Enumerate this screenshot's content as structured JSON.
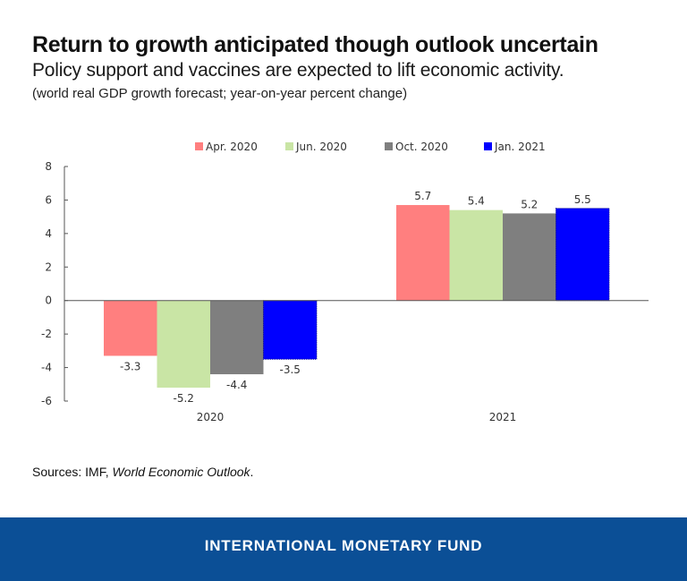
{
  "header": {
    "title": "Return to growth anticipated though outlook uncertain",
    "subtitle": "Policy support and vaccines are expected to lift economic activity.",
    "note": "(world real GDP growth forecast; year-on-year percent change)"
  },
  "sources": {
    "prefix": "Sources: IMF, ",
    "publication": "World Economic Outlook",
    "suffix": "."
  },
  "footer": {
    "org_name": "INTERNATIONAL MONETARY FUND",
    "background_color": "#0b4f96"
  },
  "chart_data": {
    "type": "bar",
    "title": "Return to growth anticipated though outlook uncertain",
    "subtitle": "Policy support and vaccines are expected to lift economic activity.",
    "xlabel": "",
    "ylabel": "",
    "categories": [
      "2020",
      "2021"
    ],
    "series": [
      {
        "name": "Apr. 2020",
        "color": "#ff7f7f",
        "values": [
          -3.3,
          5.7
        ],
        "labels": [
          "-3.3",
          "5.7"
        ]
      },
      {
        "name": "Jun. 2020",
        "color": "#c9e5a5",
        "values": [
          -5.2,
          5.4
        ],
        "labels": [
          "-5.2",
          "5.4"
        ]
      },
      {
        "name": "Oct. 2020",
        "color": "#7f7f7f",
        "values": [
          -4.4,
          5.2
        ],
        "labels": [
          "-4.4",
          "5.2"
        ]
      },
      {
        "name": "Jan. 2021",
        "color": "#0000ff",
        "values": [
          -3.5,
          5.5
        ],
        "labels": [
          "-3.5",
          "5.5"
        ]
      }
    ],
    "ylim": [
      -6,
      8
    ],
    "yticks": [
      8,
      6,
      4,
      2,
      0,
      -2,
      -4,
      -6
    ],
    "ytick_labels": [
      "8",
      "6",
      "4",
      "2",
      "0",
      "-2",
      "-4",
      "-6"
    ],
    "grid": false,
    "legend_position": "top-center"
  }
}
